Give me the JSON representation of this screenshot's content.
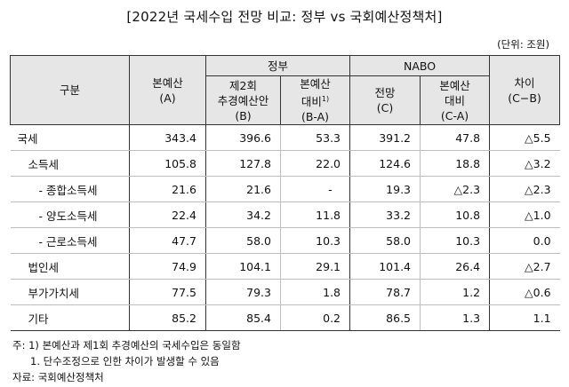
{
  "title": "[2022년 국세수입 전망 비교: 정부 vs 국회예산정책처]",
  "unit": "(단위: 조원)",
  "header": {
    "category": "구분",
    "main_budget": "본예산",
    "main_budget_code": "(A)",
    "gov_group": "정부",
    "gov_supp": "제2회",
    "gov_supp2": "추경예산안",
    "gov_supp_code": "(B)",
    "gov_diff": "본예산",
    "gov_diff2": "대비",
    "gov_diff_sup": "1)",
    "gov_diff_code": "(B-A)",
    "nabo_group": "NABO",
    "nabo_forecast": "전망",
    "nabo_forecast_code": "(C)",
    "nabo_diff": "본예산",
    "nabo_diff2": "대비",
    "nabo_diff_code": "(C-A)",
    "difference": "차이",
    "difference_code": "(C−B)"
  },
  "rows": [
    {
      "label": "국세",
      "a": "343.4",
      "b": "396.6",
      "ba": "53.3",
      "c": "391.2",
      "ca": "47.8",
      "cb": "△5.5"
    },
    {
      "label": "소득세",
      "a": "105.8",
      "b": "127.8",
      "ba": "22.0",
      "c": "124.6",
      "ca": "18.8",
      "cb": "△3.2"
    },
    {
      "label": "- 종합소득세",
      "a": "21.6",
      "b": "21.6",
      "ba": "-",
      "c": "19.3",
      "ca": "△2.3",
      "cb": "△2.3"
    },
    {
      "label": "- 양도소득세",
      "a": "22.4",
      "b": "34.2",
      "ba": "11.8",
      "c": "33.2",
      "ca": "10.8",
      "cb": "△1.0"
    },
    {
      "label": "- 근로소득세",
      "a": "47.7",
      "b": "58.0",
      "ba": "10.3",
      "c": "58.0",
      "ca": "10.3",
      "cb": "0.0"
    },
    {
      "label": "법인세",
      "a": "74.9",
      "b": "104.1",
      "ba": "29.1",
      "c": "101.4",
      "ca": "26.4",
      "cb": "△2.7"
    },
    {
      "label": "부가가치세",
      "a": "77.5",
      "b": "79.3",
      "ba": "1.8",
      "c": "78.7",
      "ca": "1.2",
      "cb": "△0.6"
    },
    {
      "label": "기타",
      "a": "85.2",
      "b": "85.4",
      "ba": "0.2",
      "c": "86.5",
      "ca": "1.3",
      "cb": "1.1"
    }
  ],
  "notes": {
    "line1": "주: 1) 본예산과 제1회 추경예산의 국세수입은 동일함",
    "line2": "1. 단수조정으로 인한 차이가 발생할 수 있음",
    "source": "자료: 국회예산정책처"
  }
}
